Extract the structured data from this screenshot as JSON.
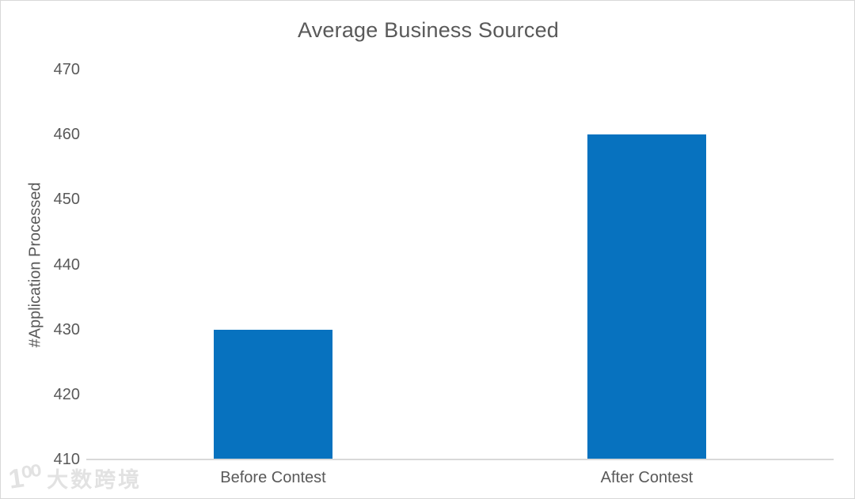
{
  "page": {
    "background": "#ffffff",
    "border_color": "#d8d8d8"
  },
  "chart_data": {
    "type": "bar",
    "title": "Average Business Sourced",
    "xlabel": "",
    "ylabel": "#Application Processed",
    "categories": [
      "Before Contest",
      "After Contest"
    ],
    "values": [
      430,
      460
    ],
    "ylim": [
      410,
      470
    ],
    "yticks": [
      410,
      420,
      430,
      440,
      450,
      460,
      470
    ],
    "grid": false,
    "legend_position": "none",
    "bar_color": "#0772bf",
    "text_color": "#595959",
    "axis_line_color": "#d9d9d9"
  },
  "watermark": {
    "logo": "1⁰⁰",
    "text": "大数跨境"
  }
}
